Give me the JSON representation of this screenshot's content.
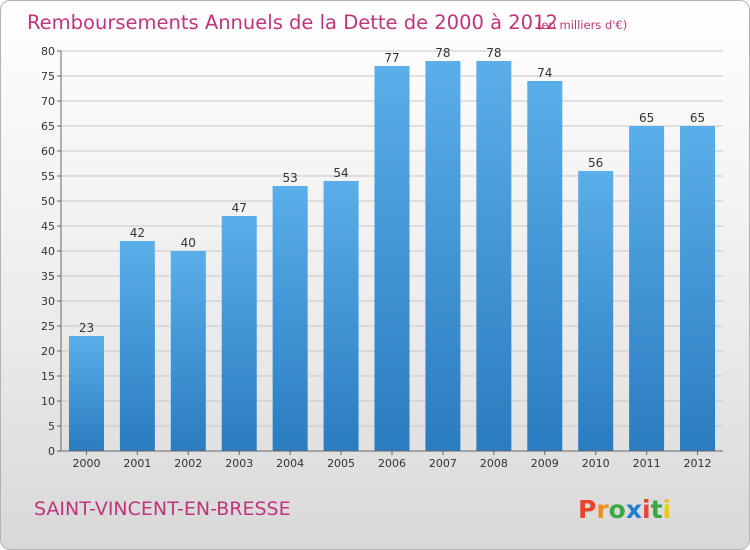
{
  "chart_data": {
    "type": "bar",
    "title": "Remboursements Annuels de la Dette de 2000 à 2012",
    "subtitle": "(en milliers d'€)",
    "categories": [
      "2000",
      "2001",
      "2002",
      "2003",
      "2004",
      "2005",
      "2006",
      "2007",
      "2008",
      "2009",
      "2010",
      "2011",
      "2012"
    ],
    "values": [
      23,
      42,
      40,
      47,
      53,
      54,
      77,
      78,
      78,
      74,
      56,
      65,
      65
    ],
    "ylim": [
      0,
      80
    ],
    "yticks": [
      0,
      5,
      10,
      15,
      20,
      25,
      30,
      35,
      40,
      45,
      50,
      55,
      60,
      65,
      70,
      75,
      80
    ],
    "grid": true,
    "colors": {
      "bar_top": "#5aaee9",
      "bar_bottom": "#2a7cc0",
      "text_accent": "#c0357a"
    }
  },
  "footer": {
    "city": "SAINT-VINCENT-EN-BRESSE"
  },
  "logo": {
    "text": "Proxiti",
    "colors": [
      "#e8462a",
      "#f28c1e",
      "#3aa845",
      "#1e7fd0",
      "#e8462a",
      "#3aa845",
      "#f2c51e"
    ]
  }
}
